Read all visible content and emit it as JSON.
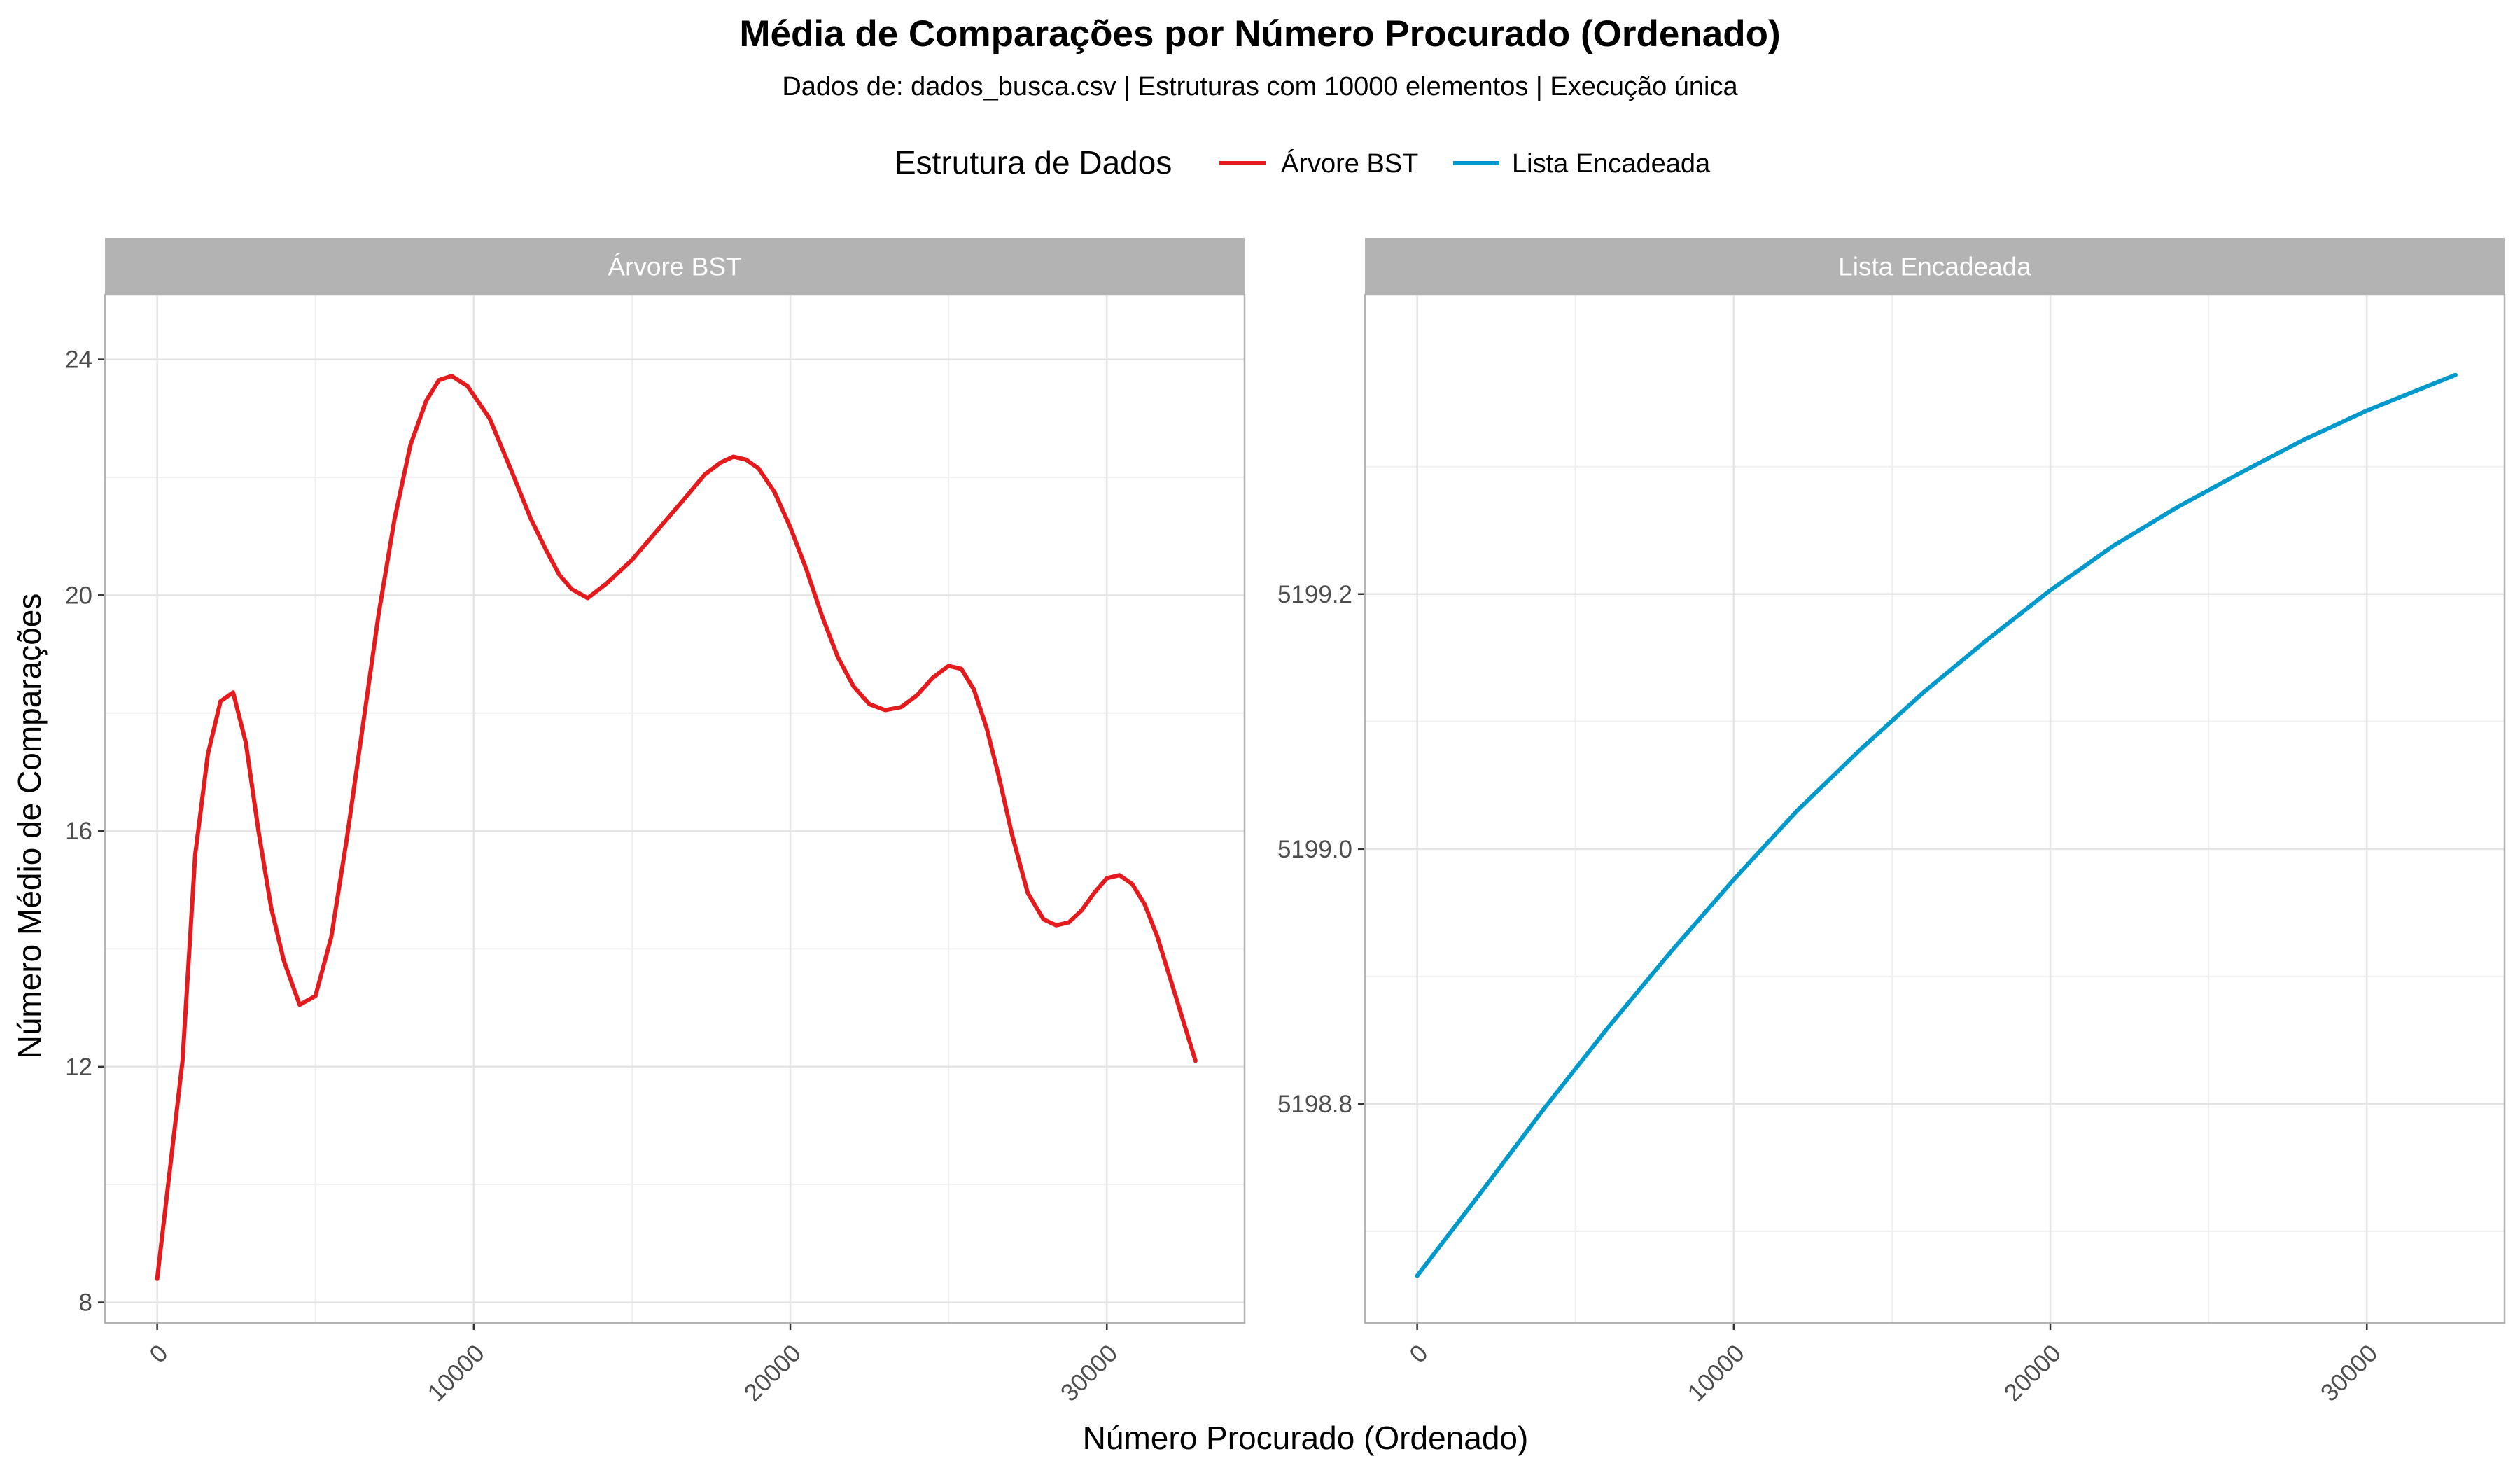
{
  "title": "Média de Comparações por Número Procurado (Ordenado)",
  "subtitle": "Dados de: dados_busca.csv | Estruturas com 10000 elementos | Execução única",
  "legend": {
    "title": "Estrutura de Dados",
    "items": [
      {
        "label": "Árvore BST",
        "color": "#e41a1c"
      },
      {
        "label": "Lista Encadeada",
        "color": "#0099cc"
      }
    ]
  },
  "chart_data": {
    "type": "line",
    "xlabel": "Número Procurado (Ordenado)",
    "ylabel": "Número Médio de Comparações",
    "facets": [
      {
        "name": "Árvore BST",
        "color": "#e41a1c",
        "xlim": [
          -1650,
          34350
        ],
        "ylim": [
          7.65,
          25.1
        ],
        "x_ticks": [
          0,
          10000,
          20000,
          30000
        ],
        "x_tick_labels": [
          "0",
          "10000",
          "20000",
          "30000"
        ],
        "y_ticks": [
          8,
          12,
          16,
          20,
          24
        ],
        "y_tick_labels": [
          "8",
          "12",
          "16",
          "20",
          "24"
        ],
        "x": [
          0,
          800,
          1200,
          1600,
          2000,
          2400,
          2800,
          3200,
          3600,
          4000,
          4500,
          5000,
          5500,
          6000,
          6500,
          7000,
          7500,
          8000,
          8500,
          8900,
          9300,
          9800,
          10500,
          11200,
          11800,
          12300,
          12700,
          13100,
          13600,
          14200,
          15000,
          15800,
          16600,
          17300,
          17800,
          18200,
          18600,
          19000,
          19500,
          20000,
          20500,
          21000,
          21500,
          22000,
          22500,
          23000,
          23500,
          24000,
          24500,
          25000,
          25400,
          25800,
          26200,
          26600,
          27000,
          27500,
          28000,
          28400,
          28800,
          29200,
          29600,
          30000,
          30400,
          30800,
          31200,
          31600,
          32000,
          32400,
          32800
        ],
        "y": [
          8.4,
          12.1,
          15.6,
          17.3,
          18.2,
          18.35,
          17.5,
          16.0,
          14.7,
          13.8,
          13.05,
          13.2,
          14.2,
          15.9,
          17.8,
          19.7,
          21.3,
          22.55,
          23.3,
          23.65,
          23.72,
          23.55,
          23.0,
          22.1,
          21.3,
          20.75,
          20.35,
          20.1,
          19.95,
          20.2,
          20.6,
          21.1,
          21.6,
          22.05,
          22.25,
          22.35,
          22.3,
          22.15,
          21.75,
          21.15,
          20.45,
          19.65,
          18.95,
          18.45,
          18.15,
          18.05,
          18.1,
          18.3,
          18.6,
          18.8,
          18.75,
          18.4,
          17.75,
          16.9,
          15.95,
          14.95,
          14.5,
          14.4,
          14.45,
          14.65,
          14.95,
          15.2,
          15.25,
          15.1,
          14.75,
          14.2,
          13.5,
          12.8,
          12.1
        ]
      },
      {
        "name": "Lista Encadeada",
        "color": "#0099cc",
        "xlim": [
          -1650,
          34350
        ],
        "ylim": [
          5198.628,
          5199.435
        ],
        "x_ticks": [
          0,
          10000,
          20000,
          30000
        ],
        "x_tick_labels": [
          "0",
          "10000",
          "20000",
          "30000"
        ],
        "y_ticks": [
          5198.8,
          5199.0,
          5199.2
        ],
        "y_tick_labels": [
          "5198.8",
          "5199.0",
          "5199.2"
        ],
        "x": [
          0,
          2000,
          4000,
          6000,
          8000,
          10000,
          12000,
          14000,
          16000,
          18000,
          20000,
          22000,
          24000,
          26000,
          28000,
          30000,
          32000,
          32800
        ],
        "y": [
          5198.665,
          5198.73,
          5198.796,
          5198.859,
          5198.919,
          5198.976,
          5199.03,
          5199.078,
          5199.123,
          5199.164,
          5199.203,
          5199.238,
          5199.268,
          5199.295,
          5199.321,
          5199.344,
          5199.364,
          5199.372
        ]
      }
    ]
  }
}
